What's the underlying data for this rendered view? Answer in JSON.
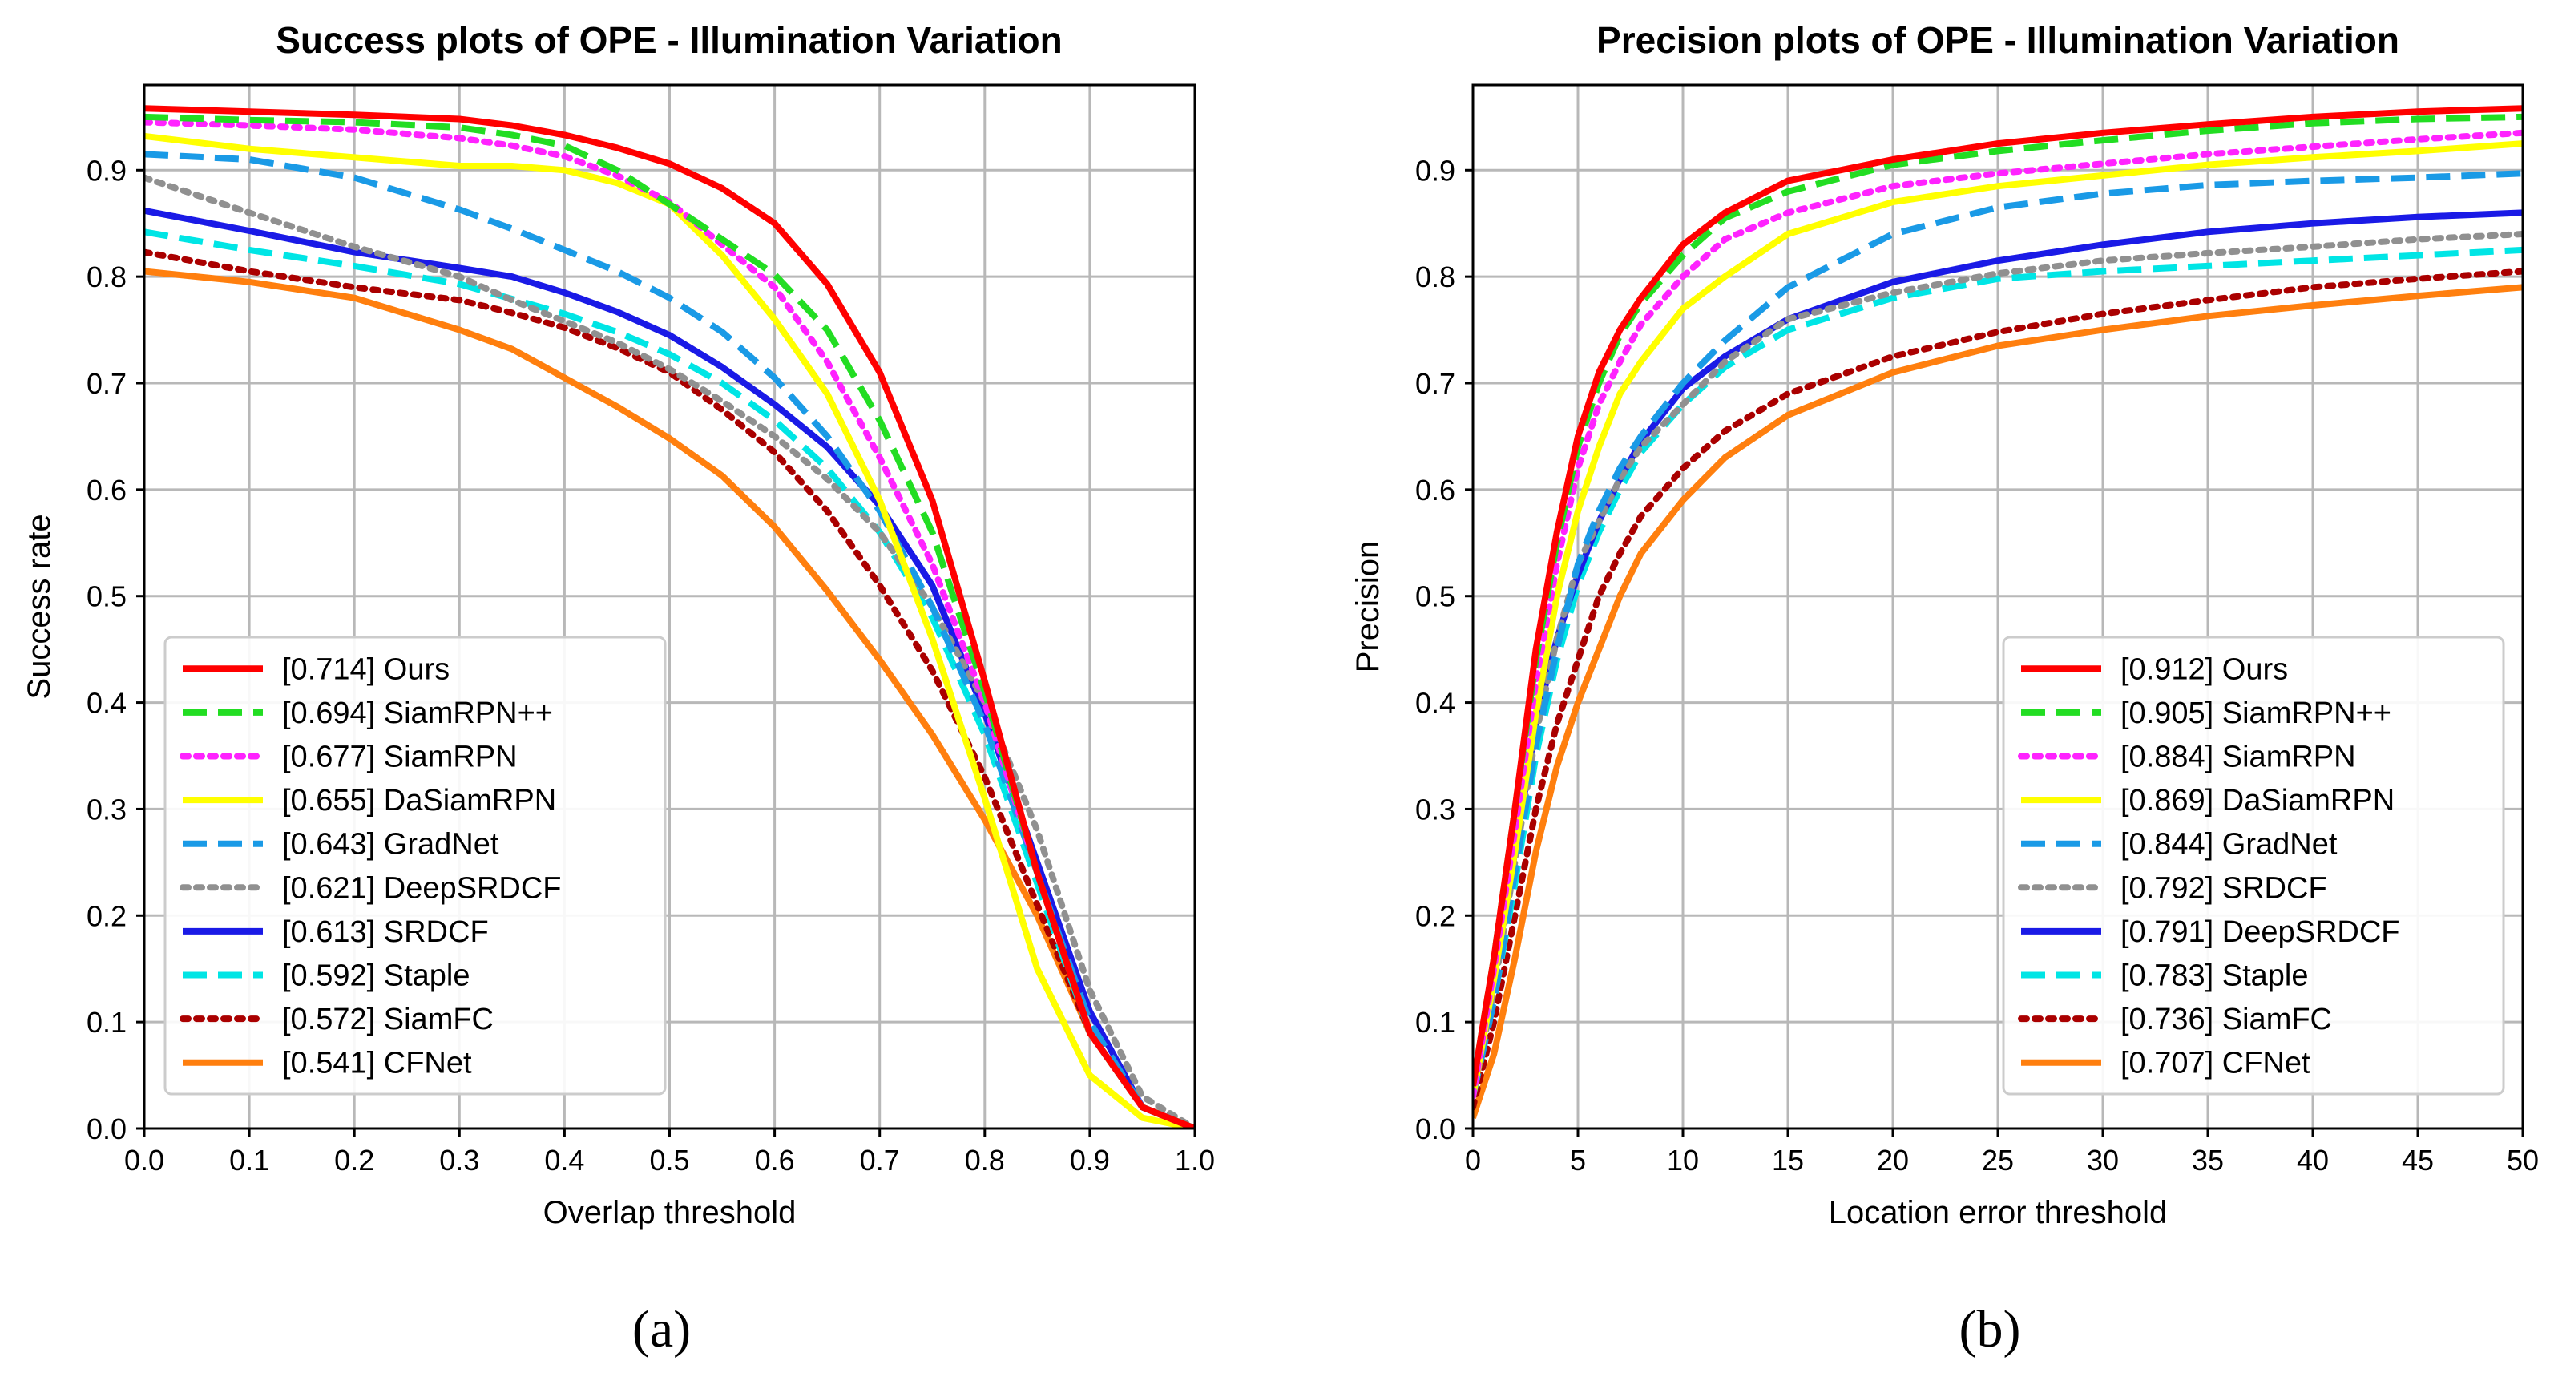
{
  "chart_data": [
    {
      "type": "line",
      "panel_label": "(a)",
      "title": "Success plots of OPE - Illumination Variation",
      "xlabel": "Overlap threshold",
      "ylabel": "Success rate",
      "xlim": [
        0,
        1
      ],
      "ylim": [
        0,
        0.98
      ],
      "xticks": [
        "0.0",
        "0.1",
        "0.2",
        "0.3",
        "0.4",
        "0.5",
        "0.6",
        "0.7",
        "0.8",
        "0.9",
        "1.0"
      ],
      "yticks": [
        "0.0",
        "0.1",
        "0.2",
        "0.3",
        "0.4",
        "0.5",
        "0.6",
        "0.7",
        "0.8",
        "0.9"
      ],
      "grid": true,
      "legend_position": "lower-left",
      "x": [
        0,
        0.1,
        0.2,
        0.3,
        0.35,
        0.4,
        0.45,
        0.5,
        0.55,
        0.6,
        0.65,
        0.7,
        0.75,
        0.8,
        0.85,
        0.9,
        0.95,
        1.0
      ],
      "series": [
        {
          "name": "[0.714] Ours",
          "color": "#ff0000",
          "style": "solid",
          "values": [
            0.958,
            0.955,
            0.952,
            0.948,
            0.942,
            0.933,
            0.921,
            0.906,
            0.883,
            0.85,
            0.793,
            0.71,
            0.59,
            0.42,
            0.24,
            0.09,
            0.02,
            0.0
          ]
        },
        {
          "name": "[0.694] SiamRPN++",
          "color": "#22dd22",
          "style": "dashed",
          "values": [
            0.95,
            0.947,
            0.945,
            0.94,
            0.933,
            0.923,
            0.9,
            0.868,
            0.835,
            0.802,
            0.75,
            0.665,
            0.56,
            0.41,
            0.24,
            0.09,
            0.02,
            0.0
          ]
        },
        {
          "name": "[0.677] SiamRPN",
          "color": "#ff22ff",
          "style": "dotted",
          "values": [
            0.945,
            0.942,
            0.938,
            0.93,
            0.923,
            0.913,
            0.895,
            0.87,
            0.83,
            0.79,
            0.72,
            0.63,
            0.53,
            0.4,
            0.24,
            0.09,
            0.02,
            0.0
          ]
        },
        {
          "name": "[0.655] DaSiamRPN",
          "color": "#ffff00",
          "style": "solid",
          "values": [
            0.932,
            0.92,
            0.912,
            0.904,
            0.904,
            0.9,
            0.888,
            0.868,
            0.82,
            0.76,
            0.69,
            0.59,
            0.46,
            0.31,
            0.15,
            0.05,
            0.01,
            0.0
          ]
        },
        {
          "name": "[0.643] GradNet",
          "color": "#1a9ae6",
          "style": "dashed",
          "values": [
            0.915,
            0.91,
            0.893,
            0.863,
            0.845,
            0.825,
            0.805,
            0.78,
            0.748,
            0.705,
            0.65,
            0.58,
            0.49,
            0.38,
            0.24,
            0.1,
            0.02,
            0.0
          ]
        },
        {
          "name": "[0.621] DeepSRDCF",
          "color": "#909090",
          "style": "dotted",
          "values": [
            0.893,
            0.86,
            0.828,
            0.8,
            0.778,
            0.758,
            0.738,
            0.713,
            0.683,
            0.65,
            0.61,
            0.56,
            0.49,
            0.4,
            0.28,
            0.13,
            0.03,
            0.0
          ]
        },
        {
          "name": "[0.613] SRDCF",
          "color": "#1a1ae6",
          "style": "solid",
          "values": [
            0.862,
            0.843,
            0.823,
            0.808,
            0.8,
            0.785,
            0.767,
            0.745,
            0.715,
            0.68,
            0.64,
            0.585,
            0.51,
            0.39,
            0.25,
            0.11,
            0.02,
            0.0
          ]
        },
        {
          "name": "[0.592] Staple",
          "color": "#00e5e5",
          "style": "dashed",
          "values": [
            0.842,
            0.825,
            0.81,
            0.793,
            0.779,
            0.765,
            0.748,
            0.727,
            0.7,
            0.665,
            0.62,
            0.56,
            0.48,
            0.37,
            0.23,
            0.09,
            0.02,
            0.0
          ]
        },
        {
          "name": "[0.572] SiamFC",
          "color": "#aa0000",
          "style": "dotted",
          "values": [
            0.823,
            0.805,
            0.79,
            0.778,
            0.766,
            0.752,
            0.733,
            0.71,
            0.675,
            0.635,
            0.58,
            0.51,
            0.43,
            0.33,
            0.21,
            0.09,
            0.02,
            0.0
          ]
        },
        {
          "name": "[0.541] CFNet",
          "color": "#ff7f0e",
          "style": "solid",
          "values": [
            0.805,
            0.795,
            0.78,
            0.75,
            0.732,
            0.705,
            0.678,
            0.648,
            0.613,
            0.565,
            0.505,
            0.44,
            0.37,
            0.29,
            0.2,
            0.09,
            0.02,
            0.0
          ]
        }
      ]
    },
    {
      "type": "line",
      "panel_label": "(b)",
      "title": "Precision plots of OPE - Illumination Variation",
      "xlabel": "Location error threshold",
      "ylabel": "Precision",
      "xlim": [
        0,
        50
      ],
      "ylim": [
        0,
        0.98
      ],
      "xticks": [
        "0",
        "5",
        "10",
        "15",
        "20",
        "25",
        "30",
        "35",
        "40",
        "45",
        "50"
      ],
      "yticks": [
        "0.0",
        "0.1",
        "0.2",
        "0.3",
        "0.4",
        "0.5",
        "0.6",
        "0.7",
        "0.8",
        "0.9"
      ],
      "grid": true,
      "legend_position": "lower-right",
      "x": [
        0,
        1,
        2,
        3,
        4,
        5,
        6,
        7,
        8,
        10,
        12,
        15,
        20,
        25,
        30,
        35,
        40,
        45,
        50
      ],
      "series": [
        {
          "name": "[0.912] Ours",
          "color": "#ff0000",
          "style": "solid",
          "values": [
            0.04,
            0.16,
            0.3,
            0.45,
            0.56,
            0.65,
            0.71,
            0.75,
            0.78,
            0.83,
            0.86,
            0.89,
            0.91,
            0.925,
            0.935,
            0.943,
            0.95,
            0.955,
            0.958
          ]
        },
        {
          "name": "[0.905] SiamRPN++",
          "color": "#22dd22",
          "style": "dashed",
          "values": [
            0.04,
            0.16,
            0.3,
            0.44,
            0.55,
            0.64,
            0.7,
            0.745,
            0.775,
            0.82,
            0.855,
            0.88,
            0.905,
            0.918,
            0.928,
            0.937,
            0.944,
            0.948,
            0.95
          ]
        },
        {
          "name": "[0.884] SiamRPN",
          "color": "#ff22ff",
          "style": "dotted",
          "values": [
            0.03,
            0.15,
            0.28,
            0.42,
            0.53,
            0.62,
            0.68,
            0.72,
            0.755,
            0.8,
            0.835,
            0.86,
            0.885,
            0.897,
            0.906,
            0.915,
            0.922,
            0.929,
            0.935
          ]
        },
        {
          "name": "[0.869] DaSiamRPN",
          "color": "#ffff00",
          "style": "solid",
          "values": [
            0.03,
            0.14,
            0.26,
            0.39,
            0.5,
            0.58,
            0.64,
            0.69,
            0.72,
            0.77,
            0.8,
            0.84,
            0.87,
            0.885,
            0.895,
            0.905,
            0.912,
            0.918,
            0.925
          ]
        },
        {
          "name": "[0.844] GradNet",
          "color": "#1a9ae6",
          "style": "dashed",
          "values": [
            0.03,
            0.12,
            0.24,
            0.36,
            0.45,
            0.53,
            0.58,
            0.62,
            0.65,
            0.7,
            0.74,
            0.79,
            0.84,
            0.865,
            0.878,
            0.886,
            0.89,
            0.893,
            0.897
          ]
        },
        {
          "name": "[0.792] SRDCF",
          "color": "#909090",
          "style": "dotted",
          "values": [
            0.03,
            0.13,
            0.25,
            0.37,
            0.46,
            0.53,
            0.57,
            0.61,
            0.64,
            0.68,
            0.72,
            0.76,
            0.785,
            0.803,
            0.815,
            0.822,
            0.828,
            0.835,
            0.84
          ]
        },
        {
          "name": "[0.791] DeepSRDCF",
          "color": "#1a1ae6",
          "style": "solid",
          "values": [
            0.04,
            0.14,
            0.26,
            0.38,
            0.46,
            0.52,
            0.57,
            0.61,
            0.645,
            0.695,
            0.725,
            0.76,
            0.795,
            0.815,
            0.83,
            0.842,
            0.85,
            0.856,
            0.86
          ]
        },
        {
          "name": "[0.783] Staple",
          "color": "#00e5e5",
          "style": "dashed",
          "values": [
            0.03,
            0.12,
            0.23,
            0.35,
            0.44,
            0.51,
            0.56,
            0.6,
            0.635,
            0.68,
            0.715,
            0.75,
            0.78,
            0.798,
            0.805,
            0.81,
            0.815,
            0.82,
            0.825
          ]
        },
        {
          "name": "[0.736] SiamFC",
          "color": "#aa0000",
          "style": "dotted",
          "values": [
            0.02,
            0.1,
            0.2,
            0.3,
            0.38,
            0.44,
            0.5,
            0.54,
            0.575,
            0.62,
            0.655,
            0.69,
            0.725,
            0.748,
            0.765,
            0.778,
            0.79,
            0.798,
            0.805
          ]
        },
        {
          "name": "[0.707] CFNet",
          "color": "#ff7f0e",
          "style": "solid",
          "values": [
            0.01,
            0.07,
            0.16,
            0.26,
            0.34,
            0.4,
            0.45,
            0.5,
            0.54,
            0.59,
            0.63,
            0.67,
            0.71,
            0.735,
            0.75,
            0.763,
            0.773,
            0.782,
            0.79
          ]
        }
      ]
    }
  ]
}
